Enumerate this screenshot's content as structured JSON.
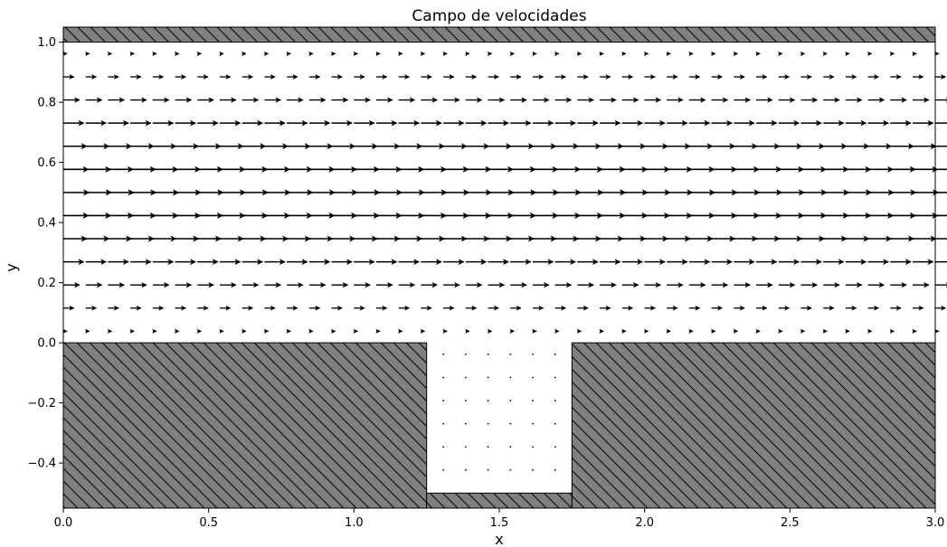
{
  "chart_data": {
    "type": "quiver",
    "title": "Campo de velocidades",
    "xlabel": "x",
    "ylabel": "y",
    "xlim": [
      0.0,
      3.0
    ],
    "ylim": [
      -0.55,
      1.05
    ],
    "grid": false,
    "legend": "none",
    "x_ticks": [
      "0.0",
      "0.5",
      "1.0",
      "1.5",
      "2.0",
      "2.5",
      "3.0"
    ],
    "y_ticks": [
      "−0.4",
      "−0.2",
      "0.0",
      "0.2",
      "0.4",
      "0.6",
      "0.8",
      "1.0"
    ],
    "x_tick_values": [
      0.0,
      0.5,
      1.0,
      1.5,
      2.0,
      2.5,
      3.0
    ],
    "y_tick_values": [
      -0.4,
      -0.2,
      0.0,
      0.2,
      0.4,
      0.6,
      0.8,
      1.0
    ],
    "walls": [
      {
        "name": "top-wall",
        "x": [
          0.0,
          3.0
        ],
        "y": [
          1.0,
          1.05
        ]
      },
      {
        "name": "left-step-wall",
        "x": [
          0.0,
          1.25
        ],
        "y": [
          -0.55,
          0.0
        ]
      },
      {
        "name": "right-step-wall",
        "x": [
          1.75,
          3.0
        ],
        "y": [
          -0.55,
          0.0
        ]
      },
      {
        "name": "cavity-bottom-wall",
        "x": [
          1.25,
          1.75
        ],
        "y": [
          -0.55,
          -0.5
        ]
      }
    ],
    "channel_field": {
      "x_start": 0.0,
      "x_step": 0.0769,
      "x_count": 40,
      "y_levels": [
        0.0385,
        0.1154,
        0.1923,
        0.2692,
        0.3462,
        0.4231,
        0.5,
        0.5769,
        0.6538,
        0.7308,
        0.8077,
        0.8846,
        0.9615
      ],
      "u": [
        0.15,
        0.42,
        0.64,
        0.81,
        0.93,
        1.0,
        1.02,
        1.0,
        0.93,
        0.81,
        0.64,
        0.42,
        0.15
      ],
      "v": 0.0
    },
    "cavity_field": {
      "x": [
        1.3077,
        1.3846,
        1.4615,
        1.5385,
        1.6154,
        1.6923
      ],
      "y": [
        -0.0385,
        -0.1154,
        -0.1923,
        -0.2692,
        -0.3462,
        -0.4231
      ],
      "u": 0.0,
      "v": 0.0
    }
  }
}
